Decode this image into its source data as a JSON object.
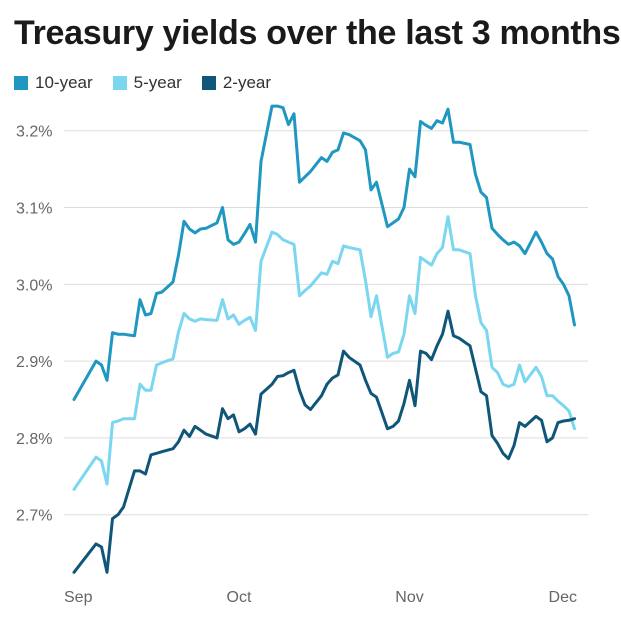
{
  "chart_data": {
    "type": "line",
    "title": "Treasury yields over the last 3 months",
    "xlabel": "",
    "ylabel": "",
    "x_ticks": [
      "Sep",
      "Oct",
      "Nov",
      "Dec"
    ],
    "x_tick_positions": [
      0,
      30,
      61,
      91
    ],
    "x_range": [
      0,
      92
    ],
    "ylim": [
      2.615,
      3.24
    ],
    "y_ticks": [
      2.7,
      2.8,
      2.9,
      3.0,
      3.1,
      3.2
    ],
    "y_tick_labels": [
      "2.7%",
      "2.8%",
      "2.9%",
      "3.0%",
      "3.1%",
      "3.2%"
    ],
    "grid": "horizontal",
    "legend_position": "top-left",
    "series": [
      {
        "name": "10-year",
        "color": "#1f97c1",
        "x": [
          0,
          4,
          5,
          6,
          7,
          8,
          9,
          11,
          12,
          13,
          14,
          15,
          16,
          18,
          19,
          20,
          21,
          22,
          23,
          24,
          26,
          27,
          28,
          29,
          30,
          31,
          32,
          33,
          34,
          36,
          37,
          38,
          39,
          40,
          41,
          42,
          43,
          45,
          46,
          47,
          48,
          49,
          50,
          52,
          53,
          54,
          55,
          57,
          58,
          59,
          60,
          61,
          62,
          63,
          64,
          65,
          66,
          67,
          68,
          69,
          70,
          72,
          73,
          74,
          75,
          76,
          77,
          78,
          79,
          80,
          81,
          82,
          84,
          85,
          86,
          87,
          88,
          89,
          90,
          91
        ],
        "y": [
          2.85,
          2.9,
          2.895,
          2.875,
          2.937,
          2.935,
          2.935,
          2.933,
          2.98,
          2.96,
          2.962,
          2.988,
          2.99,
          3.003,
          3.038,
          3.082,
          3.072,
          3.067,
          3.072,
          3.073,
          3.08,
          3.1,
          3.058,
          3.052,
          3.055,
          3.066,
          3.078,
          3.055,
          3.16,
          3.232,
          3.232,
          3.23,
          3.208,
          3.222,
          3.133,
          3.14,
          3.147,
          3.165,
          3.16,
          3.172,
          3.175,
          3.197,
          3.195,
          3.187,
          3.175,
          3.123,
          3.133,
          3.075,
          3.08,
          3.085,
          3.1,
          3.15,
          3.14,
          3.212,
          3.207,
          3.203,
          3.213,
          3.21,
          3.228,
          3.185,
          3.185,
          3.182,
          3.143,
          3.12,
          3.113,
          3.073,
          3.065,
          3.058,
          3.052,
          3.055,
          3.05,
          3.04,
          3.068,
          3.055,
          3.04,
          3.033,
          3.01,
          3.0,
          2.985,
          2.947
        ]
      },
      {
        "name": "5-year",
        "color": "#7bd6ef",
        "x": [
          0,
          4,
          5,
          6,
          7,
          8,
          9,
          11,
          12,
          13,
          14,
          15,
          16,
          18,
          19,
          20,
          21,
          22,
          23,
          24,
          26,
          27,
          28,
          29,
          30,
          31,
          32,
          33,
          34,
          36,
          37,
          38,
          39,
          40,
          41,
          42,
          43,
          45,
          46,
          47,
          48,
          49,
          50,
          52,
          53,
          54,
          55,
          57,
          58,
          59,
          60,
          61,
          62,
          63,
          64,
          65,
          66,
          67,
          68,
          69,
          70,
          72,
          73,
          74,
          75,
          76,
          77,
          78,
          79,
          80,
          81,
          82,
          84,
          85,
          86,
          87,
          88,
          89,
          90,
          91
        ],
        "y": [
          2.733,
          2.775,
          2.77,
          2.74,
          2.82,
          2.822,
          2.825,
          2.825,
          2.87,
          2.862,
          2.862,
          2.895,
          2.898,
          2.903,
          2.938,
          2.962,
          2.955,
          2.952,
          2.955,
          2.954,
          2.953,
          2.98,
          2.955,
          2.96,
          2.948,
          2.953,
          2.957,
          2.94,
          3.03,
          3.068,
          3.065,
          3.058,
          3.055,
          3.052,
          2.985,
          2.992,
          2.998,
          3.015,
          3.013,
          3.03,
          3.027,
          3.05,
          3.048,
          3.045,
          3.005,
          2.958,
          2.985,
          2.905,
          2.91,
          2.912,
          2.935,
          2.985,
          2.962,
          3.035,
          3.03,
          3.025,
          3.04,
          3.048,
          3.088,
          3.045,
          3.045,
          3.04,
          2.985,
          2.95,
          2.94,
          2.892,
          2.885,
          2.87,
          2.867,
          2.87,
          2.895,
          2.873,
          2.892,
          2.88,
          2.855,
          2.855,
          2.848,
          2.842,
          2.835,
          2.812
        ]
      },
      {
        "name": "2-year",
        "color": "#0f5679",
        "x": [
          0,
          4,
          5,
          6,
          7,
          8,
          9,
          11,
          12,
          13,
          14,
          15,
          16,
          18,
          19,
          20,
          21,
          22,
          23,
          24,
          26,
          27,
          28,
          29,
          30,
          31,
          32,
          33,
          34,
          36,
          37,
          38,
          39,
          40,
          41,
          42,
          43,
          45,
          46,
          47,
          48,
          49,
          50,
          52,
          53,
          54,
          55,
          57,
          58,
          59,
          60,
          61,
          62,
          63,
          64,
          65,
          66,
          67,
          68,
          69,
          70,
          72,
          73,
          74,
          75,
          76,
          77,
          78,
          79,
          80,
          81,
          82,
          84,
          85,
          86,
          87,
          88,
          89,
          90,
          91
        ],
        "y": [
          2.625,
          2.662,
          2.658,
          2.625,
          2.695,
          2.7,
          2.71,
          2.757,
          2.757,
          2.753,
          2.778,
          2.78,
          2.782,
          2.786,
          2.795,
          2.81,
          2.802,
          2.815,
          2.81,
          2.805,
          2.8,
          2.838,
          2.825,
          2.83,
          2.808,
          2.812,
          2.818,
          2.805,
          2.857,
          2.87,
          2.88,
          2.881,
          2.885,
          2.888,
          2.862,
          2.843,
          2.837,
          2.855,
          2.87,
          2.878,
          2.882,
          2.913,
          2.905,
          2.895,
          2.875,
          2.858,
          2.853,
          2.812,
          2.815,
          2.822,
          2.845,
          2.875,
          2.842,
          2.913,
          2.91,
          2.902,
          2.92,
          2.935,
          2.965,
          2.933,
          2.93,
          2.92,
          2.89,
          2.86,
          2.855,
          2.803,
          2.793,
          2.78,
          2.773,
          2.79,
          2.82,
          2.815,
          2.828,
          2.823,
          2.795,
          2.8,
          2.82,
          2.822,
          2.823,
          2.825
        ]
      }
    ]
  }
}
